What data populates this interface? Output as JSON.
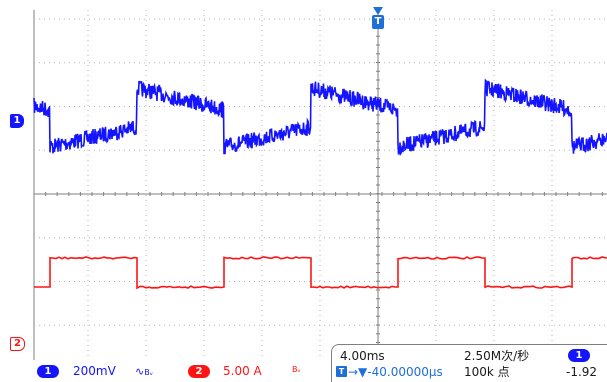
{
  "colors": {
    "ch1": "#1414ff",
    "ch2": "#ff1414",
    "grid": "#b4b4b4",
    "frame": "#7f7f7f",
    "trigger": "#1e6fd9",
    "text": "#1a1a1a"
  },
  "markers": {
    "ch1": "1",
    "ch2": "2",
    "trigger": "T"
  },
  "waveforms": {
    "ch1": {
      "shape": "noisy-sawtooth-square",
      "period_ms": 8.0
    },
    "ch2": {
      "shape": "square",
      "period_ms": 8.0,
      "duty": 0.5
    }
  },
  "status": {
    "ch1_badge": "1",
    "ch1_scale": "200mV",
    "ch1_coupling_icon": "ac-coupling-bw-icon",
    "ch1_coupling_glyph": "∿",
    "ch1_bw_glyph": "Bᵥ",
    "ch2_badge": "2",
    "ch2_scale": "5.00 A",
    "ch2_bw_glyph": "Bᵥ"
  },
  "timebase": {
    "scale": "4.00ms",
    "sample_rate": "2.50M次/秒",
    "trigger_marker": "T",
    "trigger_offset": "→▼-40.00000µs",
    "record_length": "100k 点",
    "trigger_channel_badge": "1",
    "trigger_level": "-1.92"
  }
}
